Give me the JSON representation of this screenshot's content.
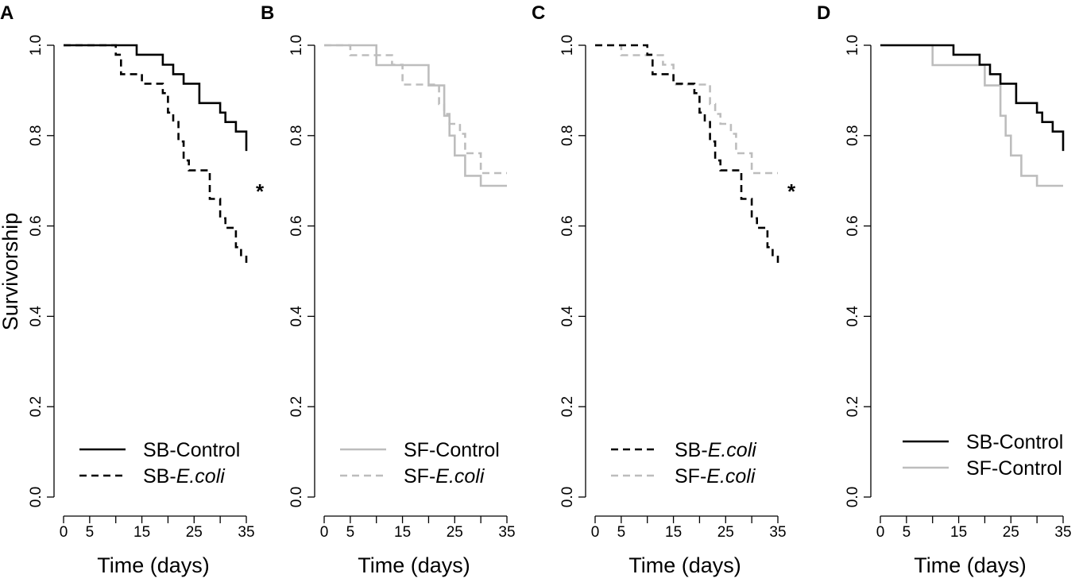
{
  "chart_data": {
    "type": "line",
    "ylabel": "Survivorship",
    "xlabel": "Time (days)",
    "ylim": [
      0.0,
      1.0
    ],
    "xlim": [
      0,
      35
    ],
    "y_ticks": [
      "0.0",
      "0.2",
      "0.4",
      "0.6",
      "0.8",
      "1.0"
    ],
    "y_tick_values": [
      0.0,
      0.2,
      0.4,
      0.6,
      0.8,
      1.0
    ],
    "x_ticks": [
      "0",
      "5",
      "15",
      "25",
      "35"
    ],
    "x_tick_values": [
      0,
      5,
      15,
      25,
      35
    ],
    "x_minor_ticks": [
      10,
      20,
      30
    ],
    "colors": {
      "sb": "#000000",
      "sf": "#bdbdbd"
    },
    "curves": {
      "SB-Control": {
        "style": "solid",
        "color": "sb",
        "points": [
          [
            0,
            1.0
          ],
          [
            14,
            1.0
          ],
          [
            14,
            0.979
          ],
          [
            19,
            0.979
          ],
          [
            19,
            0.957
          ],
          [
            21,
            0.957
          ],
          [
            21,
            0.936
          ],
          [
            23,
            0.936
          ],
          [
            23,
            0.915
          ],
          [
            26,
            0.915
          ],
          [
            26,
            0.872
          ],
          [
            30,
            0.872
          ],
          [
            30,
            0.851
          ],
          [
            31,
            0.851
          ],
          [
            31,
            0.83
          ],
          [
            33,
            0.83
          ],
          [
            33,
            0.809
          ],
          [
            35,
            0.809
          ],
          [
            35,
            0.766
          ]
        ]
      },
      "SB-E.coli": {
        "style": "dashed",
        "color": "sb",
        "points": [
          [
            0,
            1.0
          ],
          [
            10,
            1.0
          ],
          [
            10,
            0.979
          ],
          [
            11,
            0.979
          ],
          [
            11,
            0.936
          ],
          [
            15,
            0.936
          ],
          [
            15,
            0.915
          ],
          [
            19,
            0.915
          ],
          [
            19,
            0.894
          ],
          [
            20,
            0.894
          ],
          [
            20,
            0.851
          ],
          [
            21,
            0.851
          ],
          [
            21,
            0.83
          ],
          [
            22,
            0.83
          ],
          [
            22,
            0.787
          ],
          [
            23,
            0.787
          ],
          [
            23,
            0.745
          ],
          [
            24,
            0.745
          ],
          [
            24,
            0.723
          ],
          [
            28,
            0.723
          ],
          [
            28,
            0.66
          ],
          [
            30,
            0.66
          ],
          [
            30,
            0.617
          ],
          [
            31,
            0.617
          ],
          [
            31,
            0.596
          ],
          [
            33,
            0.596
          ],
          [
            33,
            0.553
          ],
          [
            34,
            0.553
          ],
          [
            34,
            0.532
          ],
          [
            35,
            0.532
          ],
          [
            35,
            0.511
          ]
        ]
      },
      "SF-Control": {
        "style": "solid",
        "color": "sf",
        "points": [
          [
            0,
            1.0
          ],
          [
            10,
            1.0
          ],
          [
            10,
            0.956
          ],
          [
            20,
            0.956
          ],
          [
            20,
            0.911
          ],
          [
            23,
            0.911
          ],
          [
            23,
            0.844
          ],
          [
            24,
            0.844
          ],
          [
            24,
            0.8
          ],
          [
            25,
            0.8
          ],
          [
            25,
            0.756
          ],
          [
            27,
            0.756
          ],
          [
            27,
            0.711
          ],
          [
            30,
            0.711
          ],
          [
            30,
            0.689
          ],
          [
            35,
            0.689
          ]
        ]
      },
      "SF-E.coli": {
        "style": "dashed",
        "color": "sf",
        "points": [
          [
            0,
            1.0
          ],
          [
            5,
            1.0
          ],
          [
            5,
            0.978
          ],
          [
            13,
            0.978
          ],
          [
            13,
            0.957
          ],
          [
            15,
            0.957
          ],
          [
            15,
            0.913
          ],
          [
            22,
            0.913
          ],
          [
            22,
            0.87
          ],
          [
            23,
            0.87
          ],
          [
            23,
            0.848
          ],
          [
            24,
            0.848
          ],
          [
            24,
            0.826
          ],
          [
            26,
            0.826
          ],
          [
            26,
            0.804
          ],
          [
            27,
            0.804
          ],
          [
            27,
            0.761
          ],
          [
            30,
            0.761
          ],
          [
            30,
            0.717
          ],
          [
            35,
            0.717
          ]
        ]
      }
    },
    "panels": [
      {
        "letter": "A",
        "curves": [
          "SB-Control",
          "SB-E.coli"
        ],
        "asterisk": "*",
        "legend": [
          {
            "curve": "SB-Control",
            "prefix": "SB-Control",
            "italic": ""
          },
          {
            "curve": "SB-E.coli",
            "prefix": "SB-",
            "italic": "E.coli"
          }
        ]
      },
      {
        "letter": "B",
        "curves": [
          "SF-Control",
          "SF-E.coli"
        ],
        "asterisk": "",
        "legend": [
          {
            "curve": "SF-Control",
            "prefix": "SF-Control",
            "italic": ""
          },
          {
            "curve": "SF-E.coli",
            "prefix": "SF-",
            "italic": "E.coli"
          }
        ]
      },
      {
        "letter": "C",
        "curves": [
          "SF-E.coli",
          "SB-E.coli"
        ],
        "asterisk": "*",
        "legend": [
          {
            "curve": "SB-E.coli",
            "prefix": "SB-",
            "italic": "E.coli"
          },
          {
            "curve": "SF-E.coli",
            "prefix": "SF-",
            "italic": "E.coli"
          }
        ]
      },
      {
        "letter": "D",
        "curves": [
          "SF-Control",
          "SB-Control"
        ],
        "asterisk": "",
        "legend": [
          {
            "curve": "SB-Control",
            "prefix": "SB-Control",
            "italic": ""
          },
          {
            "curve": "SF-Control",
            "prefix": "SF-Control",
            "italic": ""
          }
        ]
      }
    ]
  }
}
